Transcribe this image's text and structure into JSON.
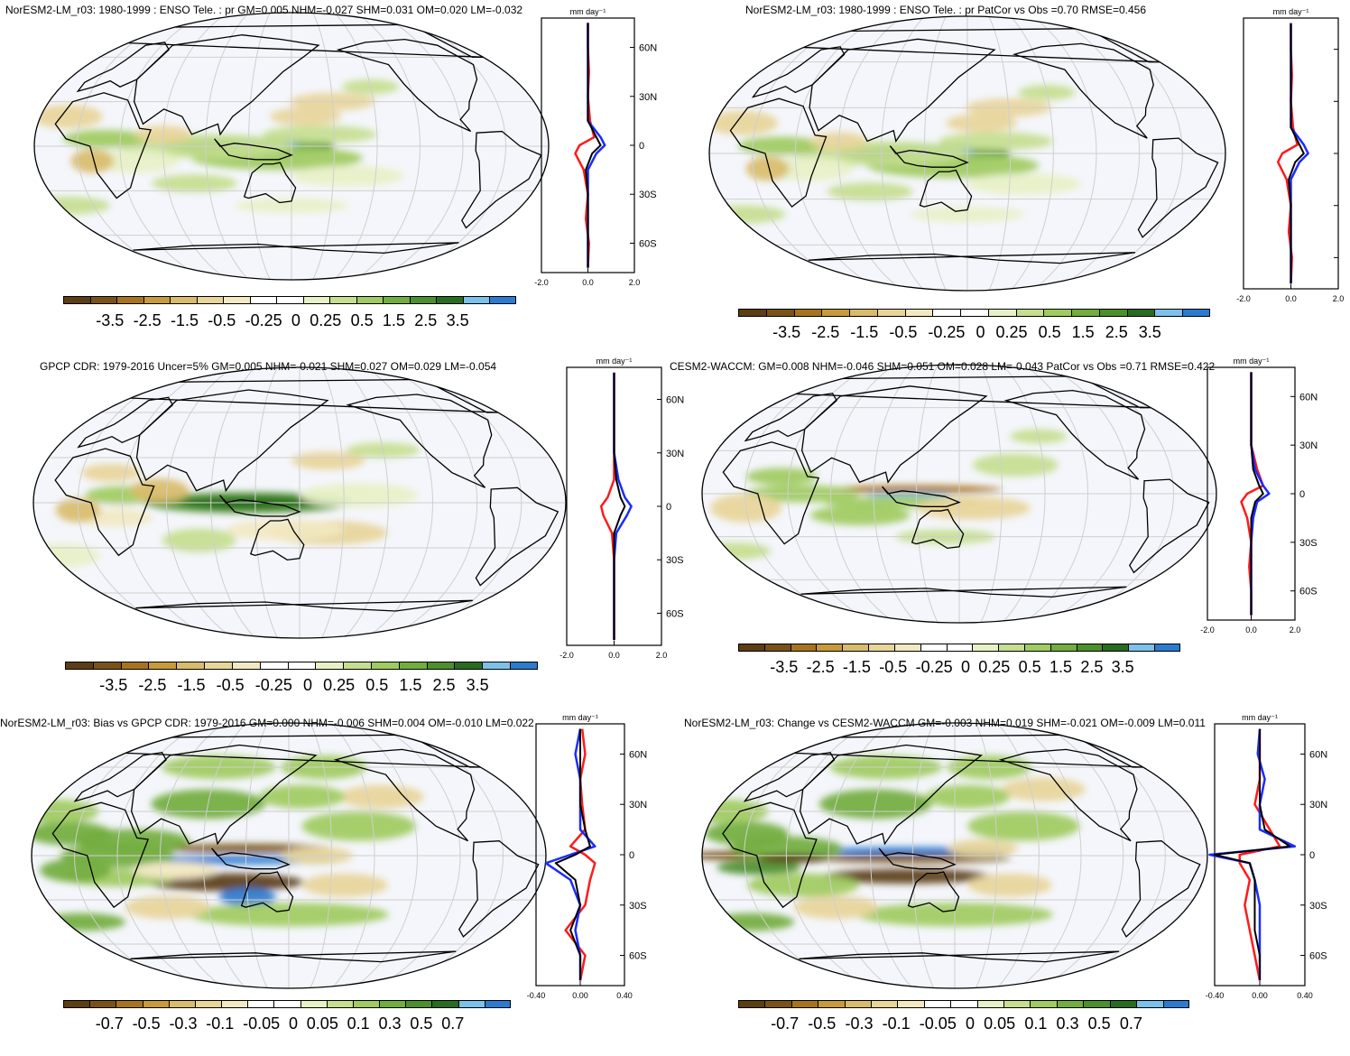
{
  "panels": [
    {
      "title": "NorESM2-LM_r03: 1980-1999 : ENSO Tele. : pr GM=0.005 NHM=-0.027 SHM=0.031 OM=0.020 LM=-0.032",
      "unit": "mm day⁻¹",
      "lat_ticks": [
        "60N",
        "30N",
        "0",
        "30S",
        "60S"
      ],
      "x_ticks": [
        "-2.0",
        "0.0",
        "2.0"
      ],
      "colorbar_labels": [
        "-3.5",
        "-2.5",
        "-1.5",
        "-0.5",
        "-0.25",
        "0",
        "0.25",
        "0.5",
        "1.5",
        "2.5",
        "3.5"
      ]
    },
    {
      "title": "NorESM2-LM_r03: 1980-1999 : ENSO Tele. : pr PatCor vs Obs =0.70 RMSE=0.456",
      "unit": "mm day⁻¹",
      "lat_ticks": [
        "",
        "",
        "",
        "",
        ""
      ],
      "x_ticks": [
        "-2.0",
        "0.0",
        "2.0"
      ],
      "colorbar_labels": [
        "-3.5",
        "-2.5",
        "-1.5",
        "-0.5",
        "-0.25",
        "0",
        "0.25",
        "0.5",
        "1.5",
        "2.5",
        "3.5"
      ]
    },
    {
      "title": "GPCP CDR: 1979-2016 Uncer=5% GM=0.005 NHM=-0.021 SHM=0.027 OM=0.029 LM=-0.054",
      "unit": "mm day⁻¹",
      "lat_ticks": [
        "60N",
        "30N",
        "0",
        "30S",
        "60S"
      ],
      "x_ticks": [
        "-2.0",
        "0.0",
        "2.0"
      ],
      "colorbar_labels": [
        "-3.5",
        "-2.5",
        "-1.5",
        "-0.5",
        "-0.25",
        "0",
        "0.25",
        "0.5",
        "1.5",
        "2.5",
        "3.5"
      ]
    },
    {
      "title": "CESM2-WACCM: GM=0.008 NHM=-0.046 SHM=0.051 OM=0.028 LM=-0.043 PatCor vs Obs =0.71 RMSE=0.422",
      "unit": "mm day⁻¹",
      "lat_ticks": [
        "60N",
        "30N",
        "0",
        "30S",
        "60S"
      ],
      "x_ticks": [
        "-2.0",
        "0.0",
        "2.0"
      ],
      "colorbar_labels": [
        "-3.5",
        "-2.5",
        "-1.5",
        "-0.5",
        "-0.25",
        "0",
        "0.25",
        "0.5",
        "1.5",
        "2.5",
        "3.5"
      ]
    },
    {
      "title": "NorESM2-LM_r03: Bias vs GPCP CDR: 1979-2016 GM=0.000 NHM=-0.006 SHM=0.004 OM=-0.010 LM=0.022",
      "unit": "mm day⁻¹",
      "lat_ticks": [
        "60N",
        "30N",
        "0",
        "30S",
        "60S"
      ],
      "x_ticks": [
        "-0.40",
        "0.00",
        "0.40"
      ],
      "colorbar_labels": [
        "-0.7",
        "-0.5",
        "-0.3",
        "-0.1",
        "-0.05",
        "0",
        "0.05",
        "0.1",
        "0.3",
        "0.5",
        "0.7"
      ]
    },
    {
      "title": "NorESM2-LM_r03: Change vs CESM2-WACCM GM=-0.003 NHM=0.019 SHM=-0.021 OM=-0.009 LM=0.011",
      "unit": "mm day⁻¹",
      "lat_ticks": [
        "60N",
        "30N",
        "0",
        "30S",
        "60S"
      ],
      "x_ticks": [
        "-0.40",
        "0.00",
        "0.40"
      ],
      "colorbar_labels": [
        "-0.7",
        "-0.5",
        "-0.3",
        "-0.1",
        "-0.05",
        "0",
        "0.05",
        "0.1",
        "0.3",
        "0.5",
        "0.7"
      ]
    }
  ],
  "colors": {
    "palette": [
      "#5c3d14",
      "#7a5219",
      "#a7741d",
      "#c79b3a",
      "#d9bc6b",
      "#e8d59a",
      "#f2e8c2",
      "#ffffff",
      "#ffffff",
      "#e7f1c6",
      "#c5de8f",
      "#9fcb60",
      "#72ad3d",
      "#4c8f2c",
      "#2a6b22",
      "#7cc1ea",
      "#2b7bd0"
    ],
    "ocean": "#f4f6fb",
    "graticule": "#cfcfcf",
    "line_red": "#ff1a1a",
    "line_blue": "#1a2bff",
    "line_black": "#000000"
  },
  "chart_data": [
    {
      "type": "heatmap",
      "title": "NorESM2-LM_r03: 1980-1999 : ENSO Tele. : pr GM=0.005 NHM=-0.027 SHM=0.031 OM=0.020 LM=-0.032",
      "zonal_profile": {
        "lat": [
          -75,
          -60,
          -45,
          -30,
          -15,
          -5,
          0,
          5,
          15,
          30,
          45,
          60,
          75
        ],
        "series": [
          {
            "values": [
              0,
              0.05,
              -0.1,
              0,
              -0.2,
              -0.6,
              -0.4,
              0.3,
              0.1,
              0,
              0.05,
              0,
              0
            ]
          },
          {
            "values": [
              0,
              0,
              0,
              0,
              0,
              0.4,
              0.8,
              0.6,
              0,
              0,
              0,
              0,
              0
            ]
          },
          {
            "values": [
              0,
              0,
              0,
              0,
              -0.1,
              0.2,
              0.6,
              0.4,
              0,
              0,
              0,
              0,
              0
            ]
          }
        ]
      }
    },
    {
      "type": "heatmap",
      "title": "NorESM2-LM_r03: 1980-1999 : ENSO Tele. : pr PatCor vs Obs =0.70 RMSE=0.456",
      "zonal_profile": {
        "lat": [
          -75,
          -60,
          -45,
          -30,
          -15,
          -5,
          0,
          5,
          15,
          30,
          45,
          60,
          75
        ],
        "series": [
          {
            "values": [
              0,
              0.05,
              -0.1,
              0,
              -0.2,
              -0.6,
              -0.4,
              0.3,
              0.1,
              0,
              0.05,
              0,
              0
            ]
          },
          {
            "values": [
              0,
              0,
              0,
              0,
              0,
              0.4,
              0.8,
              0.6,
              0,
              0,
              0,
              0,
              0
            ]
          },
          {
            "values": [
              0,
              0,
              0,
              0,
              -0.1,
              0.2,
              0.6,
              0.4,
              0,
              0,
              0,
              0,
              0
            ]
          }
        ]
      }
    },
    {
      "type": "heatmap",
      "title": "GPCP CDR: 1979-2016 Uncer=5% GM=0.005 NHM=-0.021 SHM=0.027 OM=0.029 LM=-0.054",
      "zonal_profile": {
        "lat": [
          -75,
          -60,
          -45,
          -30,
          -15,
          -5,
          0,
          5,
          15,
          30,
          45,
          60,
          75
        ],
        "series": [
          {
            "values": [
              0,
              0,
              0,
              0,
              -0.1,
              -0.5,
              -0.6,
              -0.3,
              0,
              0,
              0,
              0,
              0
            ]
          },
          {
            "values": [
              0,
              0,
              0,
              0,
              0.1,
              0.6,
              0.8,
              0.5,
              0.2,
              0,
              0,
              0,
              0
            ]
          },
          {
            "values": [
              0,
              0,
              0,
              0,
              0,
              0.3,
              0.5,
              0.3,
              0.1,
              0,
              0,
              0,
              0
            ]
          }
        ]
      }
    },
    {
      "type": "heatmap",
      "title": "CESM2-WACCM: GM=0.008 NHM=-0.046 SHM=0.051 OM=0.028 LM=-0.043 PatCor vs Obs =0.71 RMSE=0.422",
      "zonal_profile": {
        "lat": [
          -75,
          -60,
          -45,
          -30,
          -15,
          -5,
          0,
          5,
          15,
          30,
          45,
          60,
          75
        ],
        "series": [
          {
            "values": [
              0,
              0,
              -0.1,
              0,
              -0.2,
              -0.5,
              -0.2,
              0.6,
              0.3,
              0,
              0,
              0,
              0
            ]
          },
          {
            "values": [
              0,
              0,
              0,
              0,
              0.1,
              0.3,
              0.9,
              0.6,
              0.2,
              0,
              0,
              0,
              0
            ]
          },
          {
            "values": [
              0,
              0,
              0,
              0,
              0,
              0.2,
              0.6,
              0.4,
              0.1,
              0,
              0,
              0,
              0
            ]
          }
        ]
      }
    },
    {
      "type": "heatmap",
      "title": "NorESM2-LM_r03: Bias vs GPCP CDR: 1979-2016 GM=0.000 NHM=-0.006 SHM=0.004 OM=-0.010 LM=0.022",
      "zonal_profile": {
        "lat": [
          -75,
          -60,
          -45,
          -30,
          -15,
          -5,
          0,
          5,
          15,
          30,
          45,
          60,
          75
        ],
        "series": [
          {
            "values": [
              0,
              0.05,
              -0.15,
              0.05,
              0.1,
              0.15,
              0.05,
              -0.1,
              0.05,
              0.02,
              0,
              0.05,
              0.02
            ]
          },
          {
            "values": [
              0,
              0,
              -0.05,
              0,
              -0.1,
              -0.35,
              -0.1,
              0.15,
              0,
              0,
              0,
              -0.05,
              0
            ]
          },
          {
            "values": [
              0,
              0,
              -0.1,
              0,
              -0.05,
              -0.25,
              -0.05,
              0.1,
              0.05,
              0,
              0,
              0,
              0
            ]
          }
        ]
      }
    },
    {
      "type": "heatmap",
      "title": "NorESM2-LM_r03: Change vs CESM2-WACCM GM=-0.003 NHM=0.019 SHM=-0.021 OM=-0.009 LM=0.011",
      "zonal_profile": {
        "lat": [
          -75,
          -60,
          -45,
          -30,
          -15,
          -5,
          0,
          5,
          15,
          30,
          45,
          60,
          75
        ],
        "series": [
          {
            "values": [
              0,
              -0.05,
              -0.1,
              -0.15,
              -0.1,
              -0.2,
              -0.2,
              0.2,
              0.1,
              -0.05,
              0,
              0,
              0
            ]
          },
          {
            "values": [
              0,
              0,
              0,
              0,
              -0.05,
              -0.1,
              -0.5,
              0.35,
              0,
              0,
              0.05,
              -0.02,
              0
            ]
          },
          {
            "values": [
              0,
              0,
              -0.05,
              -0.05,
              -0.05,
              -0.1,
              -0.45,
              0.3,
              0.05,
              0,
              0,
              0,
              0
            ]
          }
        ]
      }
    }
  ]
}
